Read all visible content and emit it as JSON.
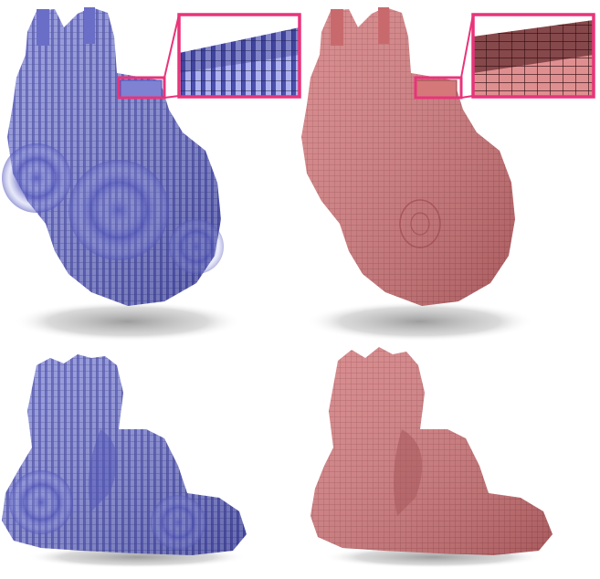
{
  "figure": {
    "panels": [
      {
        "id": "top-left",
        "model": "voxel-heart",
        "view": "front",
        "color": "#7f82d2",
        "stripe_color": "#4f52b8",
        "has_inset": true
      },
      {
        "id": "top-right",
        "model": "voxel-heart",
        "view": "front",
        "color": "#d4787a",
        "stripe_color": "#b85a5e",
        "has_inset": true
      },
      {
        "id": "bottom-left",
        "model": "voxel-heart",
        "view": "side",
        "color": "#7f82d2",
        "stripe_color": "#4f52b8",
        "has_inset": false
      },
      {
        "id": "bottom-right",
        "model": "voxel-heart",
        "view": "side",
        "color": "#d4787a",
        "stripe_color": "#b85a5e",
        "has_inset": false
      }
    ],
    "inset_border_color": "#e8347a",
    "shadow_color": "#9a9a9a"
  }
}
